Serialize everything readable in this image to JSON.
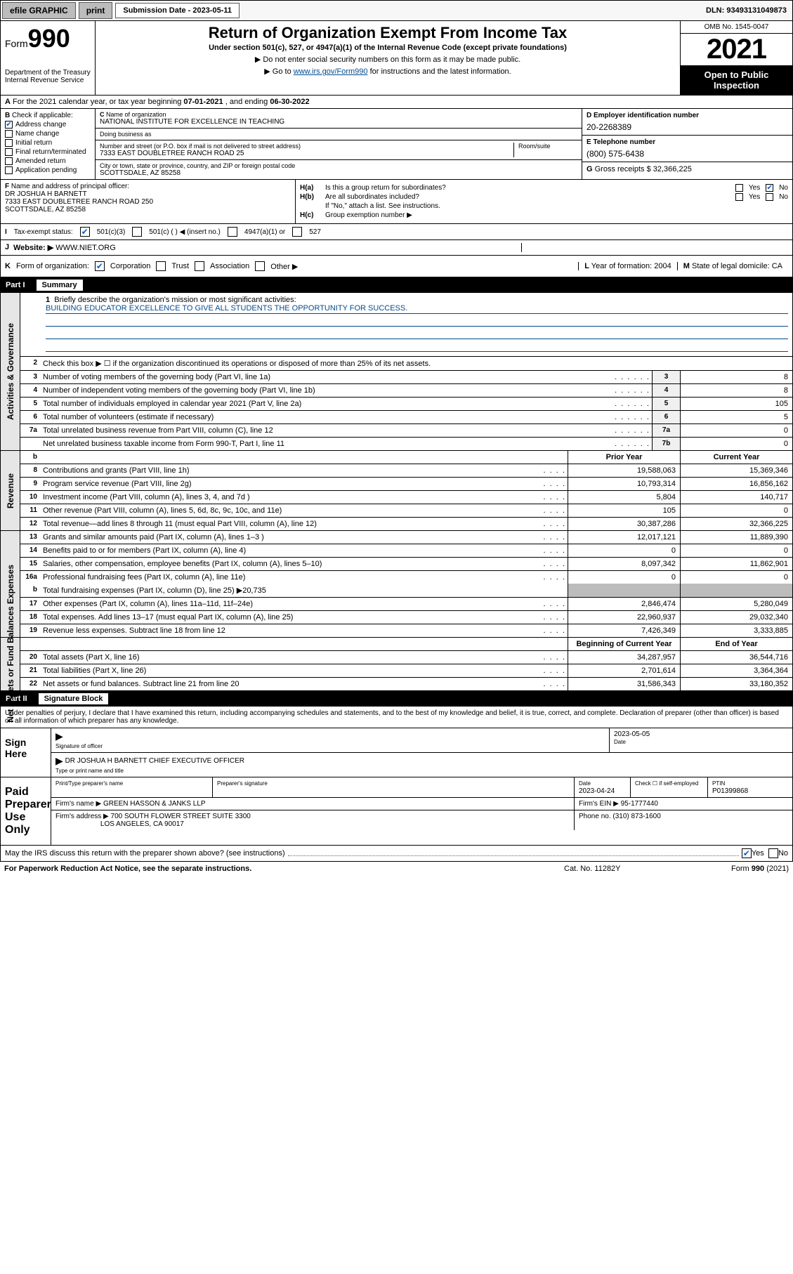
{
  "topbar": {
    "efile": "efile GRAPHIC",
    "print": "print",
    "sub_label": "Submission Date - ",
    "sub_date": "2023-05-11",
    "dln": "DLN: 93493131049873"
  },
  "header": {
    "form_word": "Form",
    "form_num": "990",
    "dept": "Department of the Treasury",
    "irs": "Internal Revenue Service",
    "title": "Return of Organization Exempt From Income Tax",
    "sub1": "Under section 501(c), 527, or 4947(a)(1) of the Internal Revenue Code (except private foundations)",
    "sub2": "▶ Do not enter social security numbers on this form as it may be made public.",
    "sub3_a": "▶ Go to ",
    "sub3_link": "www.irs.gov/Form990",
    "sub3_b": " for instructions and the latest information.",
    "omb": "OMB No. 1545-0047",
    "year": "2021",
    "open": "Open to Public Inspection"
  },
  "row_a": {
    "label": "A",
    "text": "For the 2021 calendar year, or tax year beginning ",
    "begin": "07-01-2021",
    "mid": " , and ending ",
    "end": "06-30-2022"
  },
  "col_b": {
    "label": "B",
    "check_if": "Check if applicable:",
    "items": [
      {
        "label": "Address change",
        "checked": true
      },
      {
        "label": "Name change",
        "checked": false
      },
      {
        "label": "Initial return",
        "checked": false
      },
      {
        "label": "Final return/terminated",
        "checked": false
      },
      {
        "label": "Amended return",
        "checked": false
      },
      {
        "label": "Application pending",
        "checked": false
      }
    ]
  },
  "block_c": {
    "c_lbl": "C",
    "name_lbl": "Name of organization",
    "name": "NATIONAL INSTITUTE FOR EXCELLENCE IN TEACHING",
    "dba_lbl": "Doing business as",
    "dba": "",
    "street_lbl": "Number and street (or P.O. box if mail is not delivered to street address)",
    "street": "7333 EAST DOUBLETREE RANCH ROAD 25",
    "suite_lbl": "Room/suite",
    "city_lbl": "City or town, state or province, country, and ZIP or foreign postal code",
    "city": "SCOTTSDALE, AZ  85258"
  },
  "block_de": {
    "d_lbl": "D Employer identification number",
    "ein": "20-2268389",
    "e_lbl": "E Telephone number",
    "phone": "(800) 575-6438",
    "g_lbl": "G",
    "g_text": "Gross receipts $ ",
    "g_val": "32,366,225"
  },
  "block_f": {
    "f_lbl": "F",
    "f_text": "Name and address of principal officer:",
    "name": "DR JOSHUA H BARNETT",
    "addr1": "7333 EAST DOUBLETREE RANCH ROAD 250",
    "addr2": "SCOTTSDALE, AZ  85258"
  },
  "block_h": {
    "ha_lbl": "H(a)",
    "ha_text": "Is this a group return for subordinates?",
    "ha_yes": false,
    "ha_no": true,
    "hb_lbl": "H(b)",
    "hb_text": "Are all subordinates included?",
    "hb_note": "If \"No,\" attach a list. See instructions.",
    "hc_lbl": "H(c)",
    "hc_text": "Group exemption number ▶"
  },
  "row_i": {
    "lbl": "I",
    "text": "Tax-exempt status:",
    "c3": "501(c)(3)",
    "c": "501(c) (   ) ◀ (insert no.)",
    "a1": "4947(a)(1) or",
    "s527": "527"
  },
  "row_j": {
    "lbl": "J",
    "text": "Website: ▶",
    "url": "WWW.NIET.ORG"
  },
  "row_k": {
    "lbl": "K",
    "text": "Form of organization:",
    "corp": "Corporation",
    "trust": "Trust",
    "assoc": "Association",
    "other": "Other ▶",
    "l_lbl": "L",
    "l_text": "Year of formation: ",
    "l_val": "2004",
    "m_lbl": "M",
    "m_text": "State of legal domicile: ",
    "m_val": "CA"
  },
  "part1": {
    "part": "Part I",
    "title": "Summary",
    "mission_lbl": "1",
    "mission_q": "Briefly describe the organization's mission or most significant activities:",
    "mission": "BUILDING EDUCATOR EXCELLENCE TO GIVE ALL STUDENTS THE OPPORTUNITY FOR SUCCESS.",
    "line2_lbl": "2",
    "line2": "Check this box ▶ ☐ if the organization discontinued its operations or disposed of more than 25% of its net assets."
  },
  "gov_lines": [
    {
      "n": "3",
      "d": "Number of voting members of the governing body (Part VI, line 1a)",
      "box": "3",
      "v": "8"
    },
    {
      "n": "4",
      "d": "Number of independent voting members of the governing body (Part VI, line 1b)",
      "box": "4",
      "v": "8"
    },
    {
      "n": "5",
      "d": "Total number of individuals employed in calendar year 2021 (Part V, line 2a)",
      "box": "5",
      "v": "105"
    },
    {
      "n": "6",
      "d": "Total number of volunteers (estimate if necessary)",
      "box": "6",
      "v": "5"
    },
    {
      "n": "7a",
      "d": "Total unrelated business revenue from Part VIII, column (C), line 12",
      "box": "7a",
      "v": "0"
    },
    {
      "n": "",
      "d": "Net unrelated business taxable income from Form 990-T, Part I, line 11",
      "box": "7b",
      "v": "0"
    }
  ],
  "rev_hdr": {
    "n": "b",
    "prior": "Prior Year",
    "curr": "Current Year"
  },
  "rev_lines": [
    {
      "n": "8",
      "d": "Contributions and grants (Part VIII, line 1h)",
      "p": "19,588,063",
      "c": "15,369,346"
    },
    {
      "n": "9",
      "d": "Program service revenue (Part VIII, line 2g)",
      "p": "10,793,314",
      "c": "16,856,162"
    },
    {
      "n": "10",
      "d": "Investment income (Part VIII, column (A), lines 3, 4, and 7d )",
      "p": "5,804",
      "c": "140,717"
    },
    {
      "n": "11",
      "d": "Other revenue (Part VIII, column (A), lines 5, 6d, 8c, 9c, 10c, and 11e)",
      "p": "105",
      "c": "0"
    },
    {
      "n": "12",
      "d": "Total revenue—add lines 8 through 11 (must equal Part VIII, column (A), line 12)",
      "p": "30,387,286",
      "c": "32,366,225"
    }
  ],
  "exp_lines": [
    {
      "n": "13",
      "d": "Grants and similar amounts paid (Part IX, column (A), lines 1–3 )",
      "p": "12,017,121",
      "c": "11,889,390"
    },
    {
      "n": "14",
      "d": "Benefits paid to or for members (Part IX, column (A), line 4)",
      "p": "0",
      "c": "0"
    },
    {
      "n": "15",
      "d": "Salaries, other compensation, employee benefits (Part IX, column (A), lines 5–10)",
      "p": "8,097,342",
      "c": "11,862,901"
    },
    {
      "n": "16a",
      "d": "Professional fundraising fees (Part IX, column (A), line 11e)",
      "p": "0",
      "c": "0"
    }
  ],
  "exp_b": {
    "n": "b",
    "d": "Total fundraising expenses (Part IX, column (D), line 25) ▶20,735"
  },
  "exp_lines2": [
    {
      "n": "17",
      "d": "Other expenses (Part IX, column (A), lines 11a–11d, 11f–24e)",
      "p": "2,846,474",
      "c": "5,280,049"
    },
    {
      "n": "18",
      "d": "Total expenses. Add lines 13–17 (must equal Part IX, column (A), line 25)",
      "p": "22,960,937",
      "c": "29,032,340"
    },
    {
      "n": "19",
      "d": "Revenue less expenses. Subtract line 18 from line 12",
      "p": "7,426,349",
      "c": "3,333,885"
    }
  ],
  "na_hdr": {
    "prior": "Beginning of Current Year",
    "curr": "End of Year"
  },
  "na_lines": [
    {
      "n": "20",
      "d": "Total assets (Part X, line 16)",
      "p": "34,287,957",
      "c": "36,544,716"
    },
    {
      "n": "21",
      "d": "Total liabilities (Part X, line 26)",
      "p": "2,701,614",
      "c": "3,364,364"
    },
    {
      "n": "22",
      "d": "Net assets or fund balances. Subtract line 21 from line 20",
      "p": "31,586,343",
      "c": "33,180,352"
    }
  ],
  "part2": {
    "part": "Part II",
    "title": "Signature Block"
  },
  "sig": {
    "decl": "Under penalties of perjury, I declare that I have examined this return, including accompanying schedules and statements, and to the best of my knowledge and belief, it is true, correct, and complete. Declaration of preparer (other than officer) is based on all information of which preparer has any knowledge.",
    "sign_here": "Sign Here",
    "sig_of_officer": "Signature of officer",
    "date_lbl": "Date",
    "date": "2023-05-05",
    "officer_name": "DR JOSHUA H BARNETT CHIEF EXECUTIVE OFFICER",
    "type_lbl": "Type or print name and title",
    "paid": "Paid Preparer Use Only",
    "prep_name_lbl": "Print/Type preparer's name",
    "prep_sig_lbl": "Preparer's signature",
    "prep_date_lbl": "Date",
    "prep_date": "2023-04-24",
    "check_lbl": "Check ☐ if self-employed",
    "ptin_lbl": "PTIN",
    "ptin": "P01399868",
    "firm_name_lbl": "Firm's name    ▶",
    "firm_name": "GREEN HASSON & JANKS LLP",
    "firm_ein_lbl": "Firm's EIN ▶",
    "firm_ein": "95-1777440",
    "firm_addr_lbl": "Firm's address ▶",
    "firm_addr1": "700 SOUTH FLOWER STREET SUITE 3300",
    "firm_addr2": "LOS ANGELES, CA  90017",
    "phone_lbl": "Phone no. ",
    "phone": "(310) 873-1600",
    "may_irs": "May the IRS discuss this return with the preparer shown above? (see instructions)",
    "yes": "Yes",
    "no": "No"
  },
  "footer": {
    "left": "For Paperwork Reduction Act Notice, see the separate instructions.",
    "mid": "Cat. No. 11282Y",
    "right": "Form 990 (2021)"
  },
  "vert": {
    "gov": "Activities & Governance",
    "rev": "Revenue",
    "exp": "Expenses",
    "na": "Net Assets or Fund Balances"
  },
  "colors": {
    "link": "#004b90",
    "check": "#0060d0",
    "grey": "#bcbcbc"
  }
}
